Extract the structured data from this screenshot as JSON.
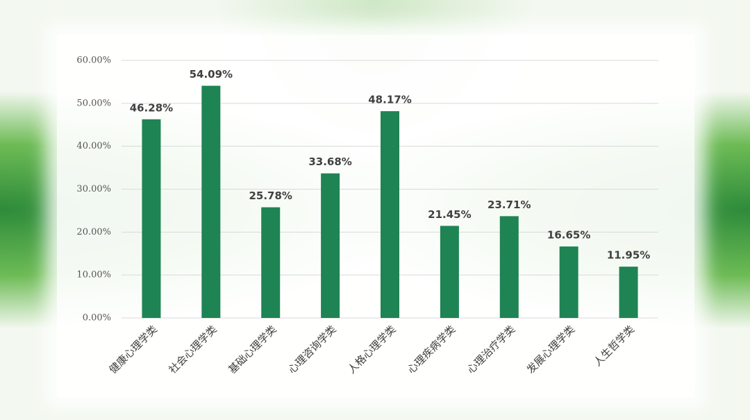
{
  "chart_data": {
    "type": "bar",
    "categories": [
      "健康心理学类",
      "社会心理学类",
      "基础心理学类",
      "心理咨询学类",
      "人格心理学类",
      "心理疾病学类",
      "心理治疗学类",
      "发展心理学类",
      "人生哲学类"
    ],
    "values": [
      46.28,
      54.09,
      25.78,
      33.68,
      48.17,
      21.45,
      23.71,
      16.65,
      11.95
    ],
    "value_labels": [
      "46.28%",
      "54.09%",
      "25.78%",
      "33.68%",
      "48.17%",
      "21.45%",
      "23.71%",
      "16.65%",
      "11.95%"
    ],
    "color": "#1e8454",
    "ylim": [
      0,
      60
    ],
    "yticks": [
      {
        "value": 0,
        "label": "0.00%"
      },
      {
        "value": 10,
        "label": "10.00%"
      },
      {
        "value": 20,
        "label": "20.00%"
      },
      {
        "value": 30,
        "label": "30.00%"
      },
      {
        "value": 40,
        "label": "40.00%"
      },
      {
        "value": 50,
        "label": "50.00%"
      },
      {
        "value": 60,
        "label": "60.00%"
      }
    ],
    "grid": true
  }
}
